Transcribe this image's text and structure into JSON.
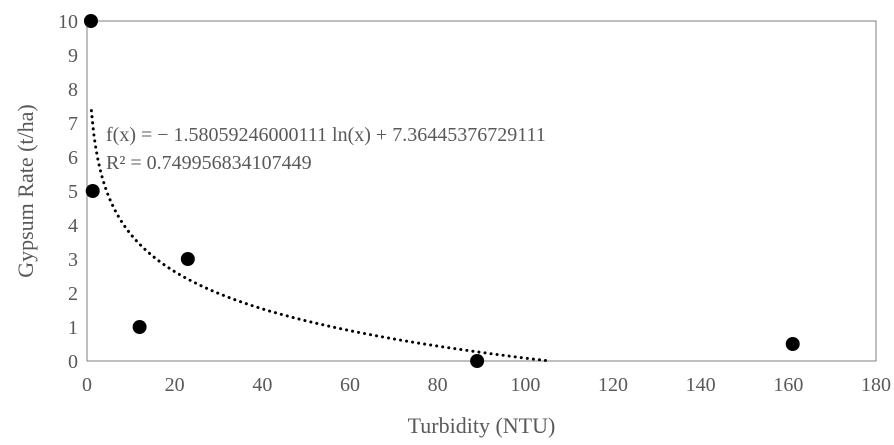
{
  "chart_data": {
    "type": "scatter",
    "title": "",
    "xlabel": "Turbidity (NTU)",
    "ylabel": "Gypsum Rate (t/ha)",
    "xlim": [
      0,
      180
    ],
    "ylim": [
      0,
      10
    ],
    "xticks": [
      0,
      20,
      40,
      60,
      80,
      100,
      120,
      140,
      160,
      180
    ],
    "yticks": [
      0,
      1,
      2,
      3,
      4,
      5,
      6,
      7,
      8,
      9,
      10
    ],
    "grid": false,
    "legend": "none",
    "points": [
      {
        "x": 0.9,
        "y": 10
      },
      {
        "x": 1.3,
        "y": 5
      },
      {
        "x": 12,
        "y": 1
      },
      {
        "x": 23,
        "y": 3
      },
      {
        "x": 89,
        "y": 0
      },
      {
        "x": 161,
        "y": 0.5
      }
    ],
    "trendline": {
      "type": "logarithmic",
      "a": -1.58059246000111,
      "b": 7.36445376729111,
      "x_range": [
        1,
        105
      ],
      "style": "dotted",
      "equation_label": "f(x) = − 1.58059246000111 ln(x) + 7.36445376729111",
      "r2_label": "R² = 0.749956834107449"
    },
    "colors": {
      "marker": "#000000",
      "trendline": "#000000",
      "axis": "#7f7f7f",
      "text": "#595959"
    }
  }
}
